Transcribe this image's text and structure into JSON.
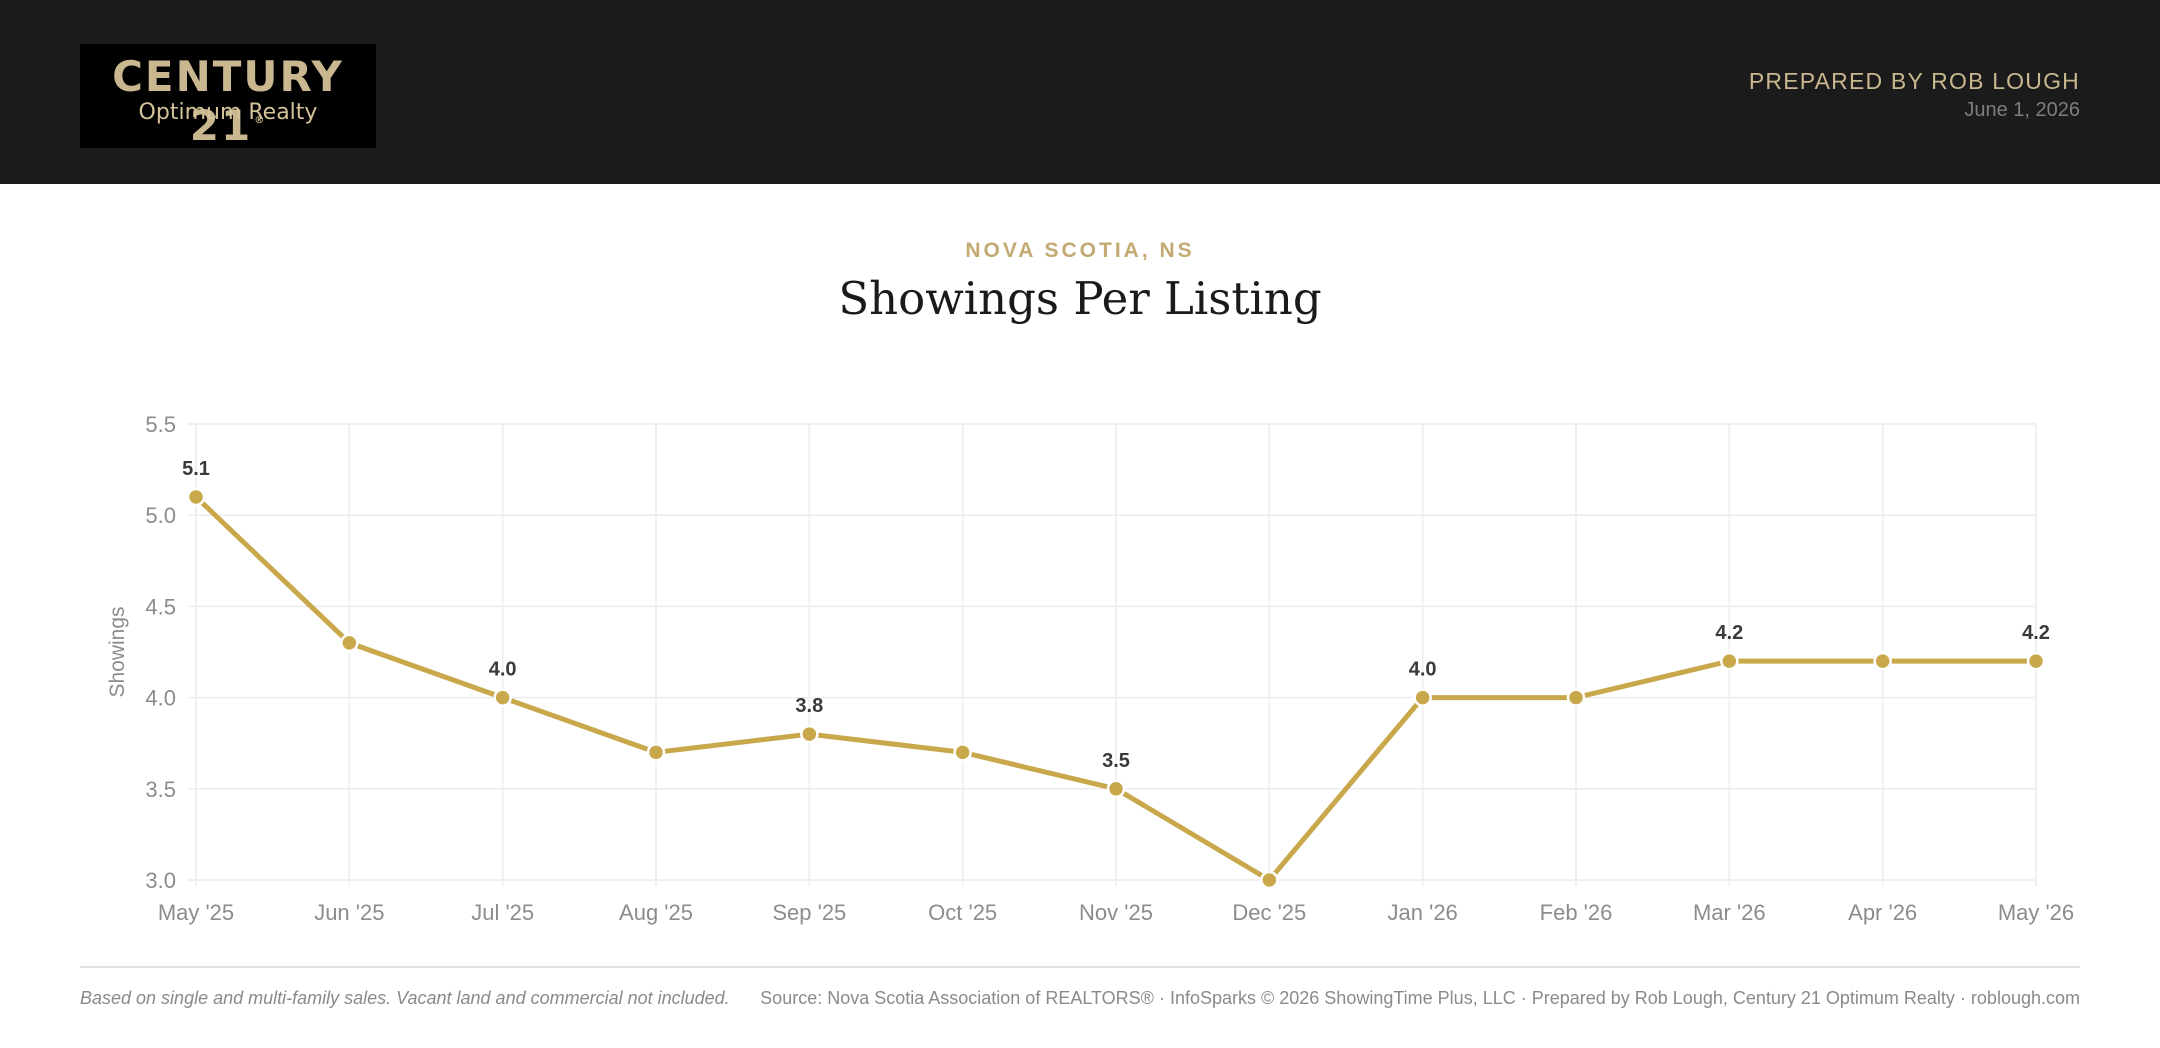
{
  "header": {
    "logo_brand": "CENTURY 21",
    "logo_registered": "®",
    "logo_sub": "Optimum Realty",
    "prepared_by": "PREPARED BY ROB LOUGH",
    "date": "June 1, 2026"
  },
  "colors": {
    "header_bg": "#1b1b1b",
    "gold": "#c9a84c",
    "accent_text": "#c2aa72"
  },
  "chart_data": {
    "type": "line",
    "subtitle": "NOVA SCOTIA, NS",
    "title": "Showings Per Listing",
    "xlabel": "",
    "ylabel": "Showings",
    "categories": [
      "May '25",
      "Jun '25",
      "Jul '25",
      "Aug '25",
      "Sep '25",
      "Oct '25",
      "Nov '25",
      "Dec '25",
      "Jan '26",
      "Feb '26",
      "Mar '26",
      "Apr '26",
      "May '26"
    ],
    "values": [
      5.1,
      4.3,
      4.0,
      3.7,
      3.8,
      3.7,
      3.5,
      3.0,
      4.0,
      4.0,
      4.2,
      4.2,
      4.2
    ],
    "data_labels": [
      "5.1",
      "",
      "4.0",
      "",
      "3.8",
      "",
      "3.5",
      "",
      "4.0",
      "",
      "4.2",
      "",
      "4.2"
    ],
    "y_ticks": [
      "3.0",
      "3.5",
      "4.0",
      "4.5",
      "5.0",
      "5.5"
    ],
    "ylim": [
      3.0,
      5.5
    ],
    "grid": true,
    "legend": "none"
  },
  "footer": {
    "note": "Based on single and multi-family sales. Vacant land and commercial not included.",
    "source": "Source: Nova Scotia Association of REALTORS® · InfoSparks © 2026 ShowingTime Plus, LLC · Prepared by Rob Lough, Century 21 Optimum Realty · roblough.com"
  }
}
